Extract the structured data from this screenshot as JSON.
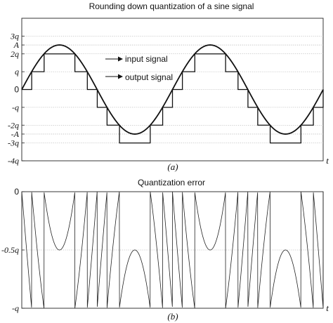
{
  "chart_data": [
    {
      "type": "line",
      "title": "Rounding down quantization of a sine signal",
      "caption": "(a)",
      "xlabel": "t",
      "ylim": [
        -4,
        4
      ],
      "unit": "q",
      "amplitude": 2.5,
      "periods": 2,
      "yticks": [
        {
          "value": 3,
          "label": "3q"
        },
        {
          "value": 2.5,
          "label": "A"
        },
        {
          "value": 2,
          "label": "2q"
        },
        {
          "value": 1,
          "label": "q"
        },
        {
          "value": 0,
          "label": "0"
        },
        {
          "value": -1,
          "label": "-q"
        },
        {
          "value": -2,
          "label": "-2q"
        },
        {
          "value": -2.5,
          "label": "-A"
        },
        {
          "value": -3,
          "label": "-3q"
        },
        {
          "value": -4,
          "label": "-4q"
        }
      ],
      "series": [
        {
          "name": "input signal",
          "formula": "A*sin(t)"
        },
        {
          "name": "output signal",
          "formula": "q*floor(A*sin(t)/q)"
        }
      ],
      "annotations": [
        "input signal",
        "output signal"
      ]
    },
    {
      "type": "line",
      "title": "Quantization error",
      "caption": "(b)",
      "xlabel": "t",
      "ylim": [
        -1,
        0
      ],
      "unit": "q",
      "yticks": [
        {
          "value": 0,
          "label": "0"
        },
        {
          "value": -0.5,
          "label": "-0.5q"
        },
        {
          "value": -1,
          "label": "-q"
        }
      ],
      "series": [
        {
          "name": "",
          "formula": "q*floor(A*sin(t)/q) - A*sin(t)"
        }
      ]
    }
  ]
}
